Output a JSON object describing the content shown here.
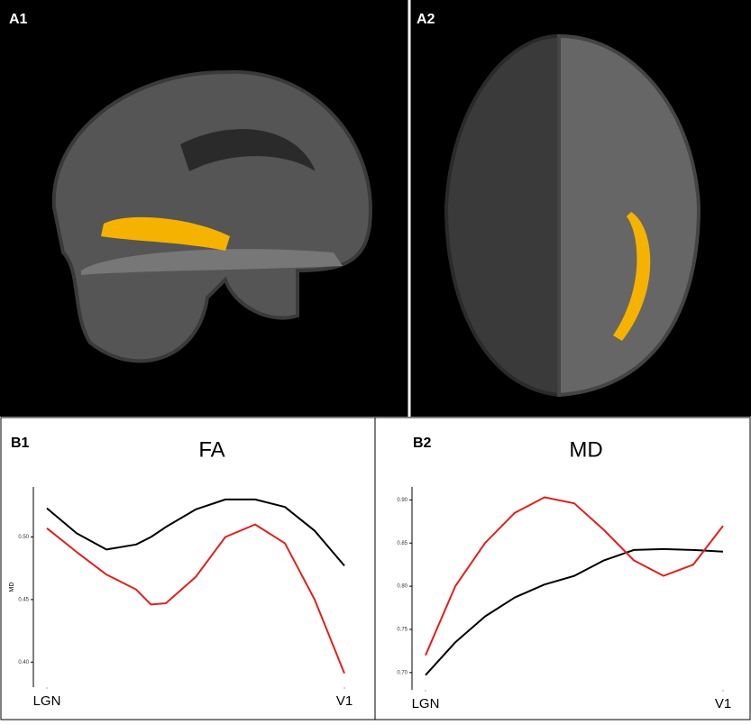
{
  "panel_labels": [
    "A1",
    "A2",
    "B1",
    "B2"
  ],
  "chart_data": [
    {
      "type": "line",
      "title": "FA",
      "y_label": "MD",
      "x": [
        0,
        10,
        20,
        30,
        35,
        40,
        50,
        60,
        70,
        80,
        90,
        100
      ],
      "xlim": [
        0,
        100
      ],
      "xticks": [
        {
          "value": 0,
          "label": "LGN"
        },
        {
          "value": 100,
          "label": "V1"
        }
      ],
      "ylim": [
        0.38,
        0.54
      ],
      "yticks": [
        {
          "value": 0.4,
          "label": "0.40"
        },
        {
          "value": 0.45,
          "label": "0.45"
        },
        {
          "value": 0.5,
          "label": "0.50"
        }
      ],
      "series": [
        {
          "color": "#000000",
          "values": [
            0.523,
            0.503,
            0.49,
            0.494,
            0.5,
            0.508,
            0.522,
            0.53,
            0.53,
            0.524,
            0.505,
            0.477
          ]
        },
        {
          "color": "#e0201b",
          "values": [
            0.507,
            0.488,
            0.47,
            0.458,
            0.446,
            0.447,
            0.468,
            0.5,
            0.51,
            0.495,
            0.45,
            0.391
          ]
        }
      ]
    },
    {
      "type": "line",
      "title": "MD",
      "x": [
        0,
        10,
        20,
        30,
        40,
        50,
        60,
        70,
        80,
        90,
        100
      ],
      "xlim": [
        0,
        100
      ],
      "xticks": [
        {
          "value": 0,
          "label": "LGN"
        },
        {
          "value": 100,
          "label": "V1"
        }
      ],
      "ylim": [
        0.68,
        0.915
      ],
      "yticks": [
        {
          "value": 0.7,
          "label": "0.70"
        },
        {
          "value": 0.75,
          "label": "0.75"
        },
        {
          "value": 0.8,
          "label": "0.80"
        },
        {
          "value": 0.85,
          "label": "0.85"
        },
        {
          "value": 0.9,
          "label": "0.90"
        }
      ],
      "series": [
        {
          "color": "#000000",
          "values": [
            0.697,
            0.735,
            0.765,
            0.787,
            0.802,
            0.812,
            0.83,
            0.842,
            0.843,
            0.842,
            0.84
          ]
        },
        {
          "color": "#e0201b",
          "values": [
            0.72,
            0.8,
            0.85,
            0.885,
            0.903,
            0.896,
            0.865,
            0.83,
            0.812,
            0.825,
            0.87
          ]
        }
      ]
    }
  ]
}
